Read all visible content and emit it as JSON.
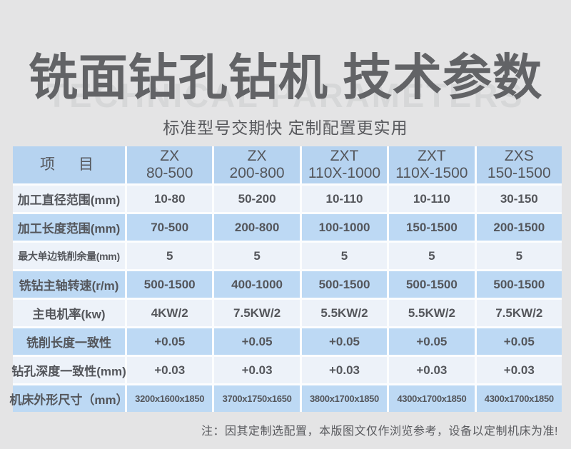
{
  "header": {
    "watermark": "TECHNICAL PARAMETERS",
    "title": "铣面钻孔钻机 技术参数",
    "subtitle": "标准型号交期快 定制配置更实用"
  },
  "table": {
    "item_header": "项　目",
    "columns": [
      {
        "line1": "ZX",
        "line2": "80-500"
      },
      {
        "line1": "ZX",
        "line2": "200-800"
      },
      {
        "line1": "ZXT",
        "line2": "110X-1000"
      },
      {
        "line1": "ZXT",
        "line2": "110X-1500"
      },
      {
        "line1": "ZXS",
        "line2": "150-1500"
      }
    ],
    "rows": [
      {
        "label": "加工直径范围(mm)",
        "values": [
          "10-80",
          "50-200",
          "10-110",
          "10-110",
          "30-150"
        ]
      },
      {
        "label": "加工长度范围(mm)",
        "values": [
          "70-500",
          "200-800",
          "100-1000",
          "150-1500",
          "200-1500"
        ]
      },
      {
        "label": "最大单边铣削余量(mm)",
        "values": [
          "5",
          "5",
          "5",
          "5",
          "5"
        ]
      },
      {
        "label": "铣钻主轴转速(r/m)",
        "values": [
          "500-1500",
          "400-1000",
          "500-1500",
          "500-1500",
          "500-1500"
        ]
      },
      {
        "label": "主电机率(kw)",
        "values": [
          "4KW/2",
          "7.5KW/2",
          "5.5KW/2",
          "5.5KW/2",
          "7.5KW/2"
        ]
      },
      {
        "label": "铣削长度一致性",
        "values": [
          "+0.05",
          "+0.05",
          "+0.05",
          "+0.05",
          "+0.05"
        ]
      },
      {
        "label": "钻孔深度一致性(mm)",
        "values": [
          "+0.03",
          "+0.03",
          "+0.03",
          "+0.03",
          "+0.03"
        ]
      },
      {
        "label": "机床外形尺寸（mm）",
        "values": [
          "3200x1600x1850",
          "3700x1750x1650",
          "3800x1700x1850",
          "4300x1700x1850",
          "4300x1700x1850"
        ]
      }
    ]
  },
  "footer": {
    "note": "注：因其定制选配置，本版图文仅作浏览参考，设备以定制机床为准!"
  },
  "colors": {
    "background": "#e4e4e5",
    "header_blue": "#b6d3f0",
    "row_blue": "#bdd9f4",
    "row_light": "#edf2f9",
    "text_dark": "#54565b",
    "title_gray": "#626366",
    "watermark_gray": "#d6d7d8"
  }
}
